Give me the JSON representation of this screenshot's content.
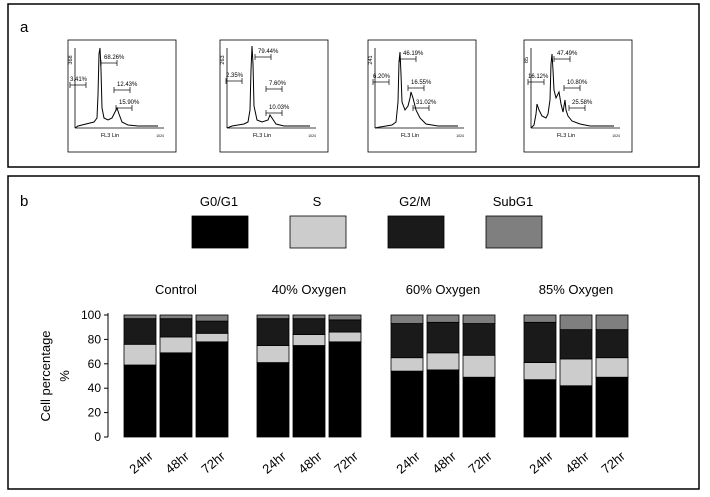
{
  "panel_a": {
    "label": "a",
    "xaxis_label": "FL3 Lin",
    "xaxis_end": "1024",
    "histograms": [
      {
        "ymax": "368",
        "g0g1": "68.26%",
        "subg1": "3.41%",
        "s": "12.43%",
        "g2m": "15.90%"
      },
      {
        "ymax": "263",
        "g0g1": "79.44%",
        "subg1": "2.35%",
        "s": "7.60%",
        "g2m": "10.03%"
      },
      {
        "ymax": "241",
        "g0g1": "46.19%",
        "subg1": "6.20%",
        "s": "16.55%",
        "g2m": "31.02%"
      },
      {
        "ymax": "85",
        "g0g1": "47.49%",
        "subg1": "16.12%",
        "s": "10.80%",
        "g2m": "25.58%"
      }
    ]
  },
  "panel_b": {
    "label": "b"
  },
  "chart_data": {
    "type": "bar",
    "stacked": true,
    "ylabel": "Cell percentage",
    "yunit": "%",
    "ylim": [
      0,
      100
    ],
    "yticks": [
      "0",
      "20",
      "40",
      "60",
      "80",
      "100"
    ],
    "legend": [
      {
        "name": "G0/G1",
        "color": "#000000"
      },
      {
        "name": "S",
        "color": "#cccccc"
      },
      {
        "name": "G2/M",
        "color": "#1a1a1a"
      },
      {
        "name": "SubG1",
        "color": "#7f7f7f"
      }
    ],
    "groups": [
      {
        "name": "Control",
        "categories": [
          "24hr",
          "48hr",
          "72hr"
        ],
        "series": {
          "G0/G1": [
            59,
            69,
            78
          ],
          "S": [
            17,
            13,
            7
          ],
          "G2/M": [
            21,
            15,
            10
          ],
          "SubG1": [
            3,
            3,
            5
          ]
        }
      },
      {
        "name": "40% Oxygen",
        "categories": [
          "24hr",
          "48hr",
          "72hr"
        ],
        "series": {
          "G0/G1": [
            61,
            75,
            78
          ],
          "S": [
            14,
            9,
            8
          ],
          "G2/M": [
            22,
            13,
            10
          ],
          "SubG1": [
            3,
            3,
            4
          ]
        }
      },
      {
        "name": "60% Oxygen",
        "categories": [
          "24hr",
          "48hr",
          "72hr"
        ],
        "series": {
          "G0/G1": [
            54,
            55,
            49
          ],
          "S": [
            11,
            14,
            18
          ],
          "G2/M": [
            28,
            25,
            26
          ],
          "SubG1": [
            7,
            6,
            7
          ]
        }
      },
      {
        "name": "85% Oxygen",
        "categories": [
          "24hr",
          "48hr",
          "72hr"
        ],
        "series": {
          "G0/G1": [
            47,
            42,
            49
          ],
          "S": [
            14,
            22,
            16
          ],
          "G2/M": [
            33,
            24,
            23
          ],
          "SubG1": [
            6,
            12,
            12
          ]
        }
      }
    ]
  }
}
